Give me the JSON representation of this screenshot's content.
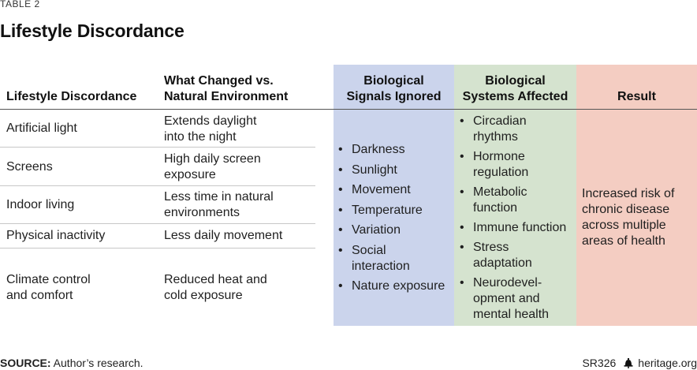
{
  "table_label": "TABLE 2",
  "title": "Lifestyle Discordance",
  "headers": {
    "discordance": "Lifestyle Discordance",
    "changed_line1": "What Changed vs.",
    "changed_line2": "Natural Environment",
    "signals_line1": "Biological",
    "signals_line2": "Signals Ignored",
    "systems_line1": "Biological",
    "systems_line2": "Systems Affected",
    "result": "Result"
  },
  "rows": [
    {
      "discordance": [
        "Artificial light"
      ],
      "changed": [
        "Extends daylight",
        "into the night"
      ]
    },
    {
      "discordance": [
        "Screens"
      ],
      "changed": [
        "High daily screen",
        "exposure"
      ]
    },
    {
      "discordance": [
        "Indoor living"
      ],
      "changed": [
        "Less time in natural",
        "environments"
      ]
    },
    {
      "discordance": [
        "Physical inactivity"
      ],
      "changed": [
        "Less daily movement"
      ]
    },
    {
      "discordance": [
        "Climate control",
        "and comfort"
      ],
      "changed": [
        "Reduced heat and",
        "cold exposure"
      ]
    }
  ],
  "signals_ignored": [
    [
      "Darkness"
    ],
    [
      "Sunlight"
    ],
    [
      "Movement"
    ],
    [
      "Temperature"
    ],
    [
      "Variation"
    ],
    [
      "Social",
      "interaction"
    ],
    [
      "Nature exposure"
    ]
  ],
  "systems_affected": [
    [
      "Circadian",
      "rhythms"
    ],
    [
      "Hormone",
      "regulation"
    ],
    [
      "Metabolic",
      "function"
    ],
    [
      "Immune function"
    ],
    [
      "Stress",
      "adaptation"
    ],
    [
      "Neurodevel-",
      "opment and",
      "mental health"
    ]
  ],
  "result": [
    "Increased risk of",
    "chronic disease",
    "across multiple",
    "areas of health"
  ],
  "footer": {
    "source_label": "SOURCE:",
    "source_text": " Author’s research.",
    "report_id": "SR326",
    "site": "heritage.org",
    "logo_icon": "bell-icon"
  },
  "colors": {
    "signals_band": "#cbd4ec",
    "systems_band": "#d5e3cf",
    "result_band": "#f4cdc2"
  }
}
